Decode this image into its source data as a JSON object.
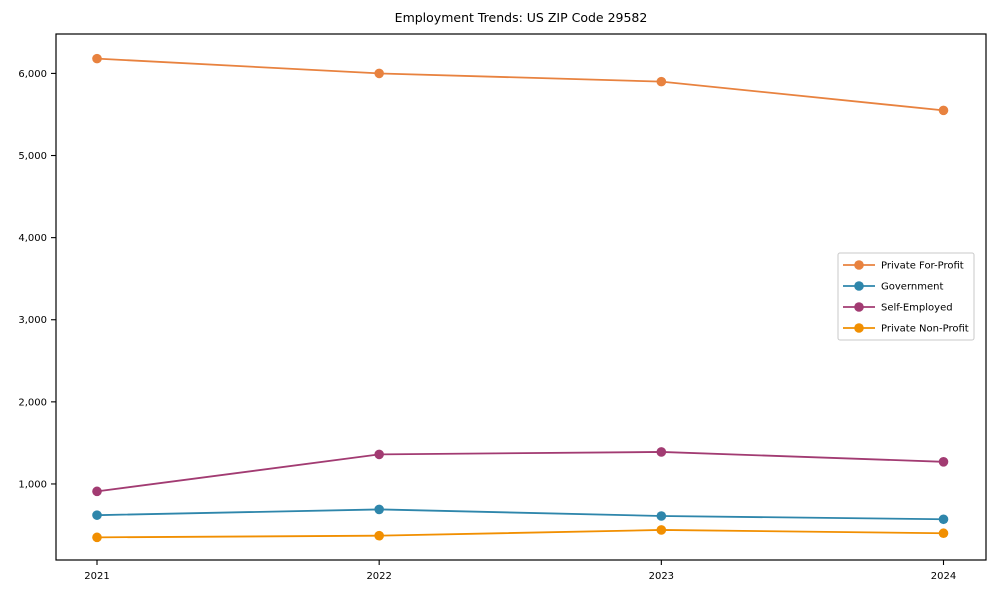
{
  "chart_data": {
    "type": "line",
    "title": "Employment Trends: US ZIP Code 29582",
    "xlabel": "",
    "ylabel": "",
    "categories": [
      "2021",
      "2022",
      "2023",
      "2024"
    ],
    "series": [
      {
        "name": "Private For-Profit",
        "color": "#E8823F",
        "values": [
          6180,
          6000,
          5900,
          5550
        ]
      },
      {
        "name": "Government",
        "color": "#2E86AB",
        "values": [
          620,
          690,
          610,
          570
        ]
      },
      {
        "name": "Self-Employed",
        "color": "#A23B72",
        "values": [
          910,
          1360,
          1390,
          1270
        ]
      },
      {
        "name": "Private Non-Profit",
        "color": "#F18F01",
        "values": [
          350,
          370,
          440,
          400
        ]
      }
    ],
    "yticks": [
      1000,
      2000,
      3000,
      4000,
      5000,
      6000
    ],
    "ytick_labels": [
      "1,000",
      "2,000",
      "3,000",
      "4,000",
      "5,000",
      "6,000"
    ],
    "ylim": [
      74,
      6480
    ],
    "grid": false,
    "marker": "circle",
    "legend_position": "center-right",
    "frame_color": "#000000",
    "legend_border_color": "#c9c9c9",
    "legend_background": "#ffffff"
  }
}
